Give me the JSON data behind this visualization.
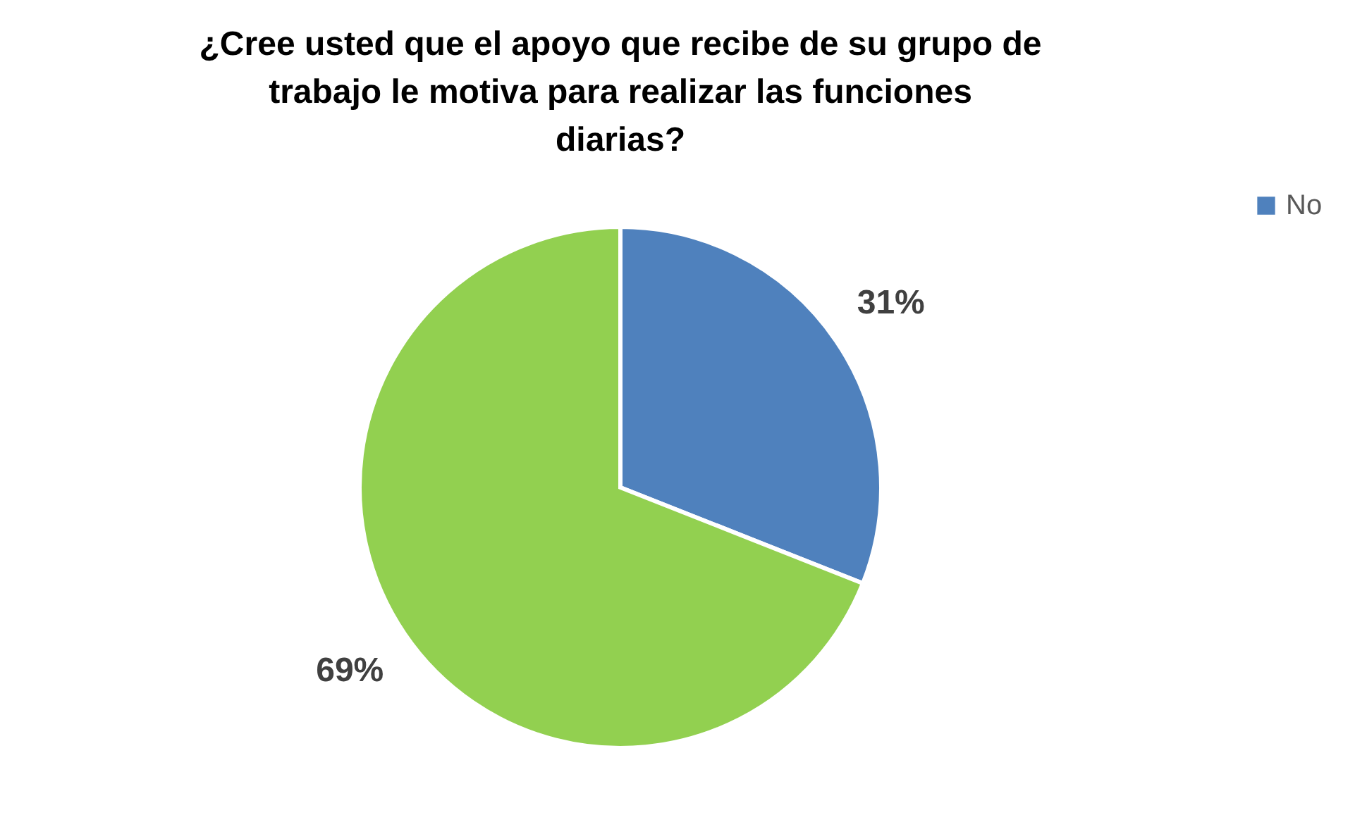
{
  "chart_data": {
    "type": "pie",
    "title": "¿Cree usted que el apoyo que recibe de su grupo de trabajo le motiva para realizar las funciones diarias?",
    "categories": [
      "No",
      null
    ],
    "values": [
      31,
      69
    ],
    "colors": [
      "#4f81bd",
      "#92d050"
    ],
    "value_labels": [
      "31%",
      "69%"
    ],
    "legend": "right"
  }
}
